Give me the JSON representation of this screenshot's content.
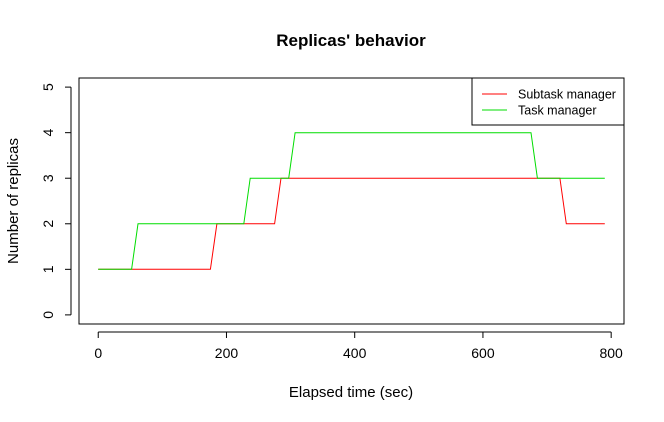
{
  "chart_data": {
    "type": "line",
    "title": "Replicas' behavior",
    "xlabel": "Elapsed time (sec)",
    "ylabel": "Number of replicas",
    "xlim": [
      -30,
      820
    ],
    "ylim": [
      -0.2,
      5.2
    ],
    "xticks": [
      0,
      200,
      400,
      600,
      800
    ],
    "yticks": [
      0,
      1,
      2,
      3,
      4,
      5
    ],
    "legend_position": "top-right",
    "grid": false,
    "series": [
      {
        "name": "Subtask manager",
        "color": "#ff0000",
        "points": [
          [
            0,
            1
          ],
          [
            175,
            1
          ],
          [
            185,
            2
          ],
          [
            275,
            2
          ],
          [
            285,
            3
          ],
          [
            720,
            3
          ],
          [
            730,
            2
          ],
          [
            790,
            2
          ]
        ]
      },
      {
        "name": "Task manager",
        "color": "#00dd00",
        "points": [
          [
            0,
            1
          ],
          [
            52,
            1
          ],
          [
            62,
            2
          ],
          [
            227,
            2
          ],
          [
            237,
            3
          ],
          [
            297,
            3
          ],
          [
            307,
            4
          ],
          [
            675,
            4
          ],
          [
            685,
            3
          ],
          [
            790,
            3
          ]
        ]
      }
    ]
  }
}
